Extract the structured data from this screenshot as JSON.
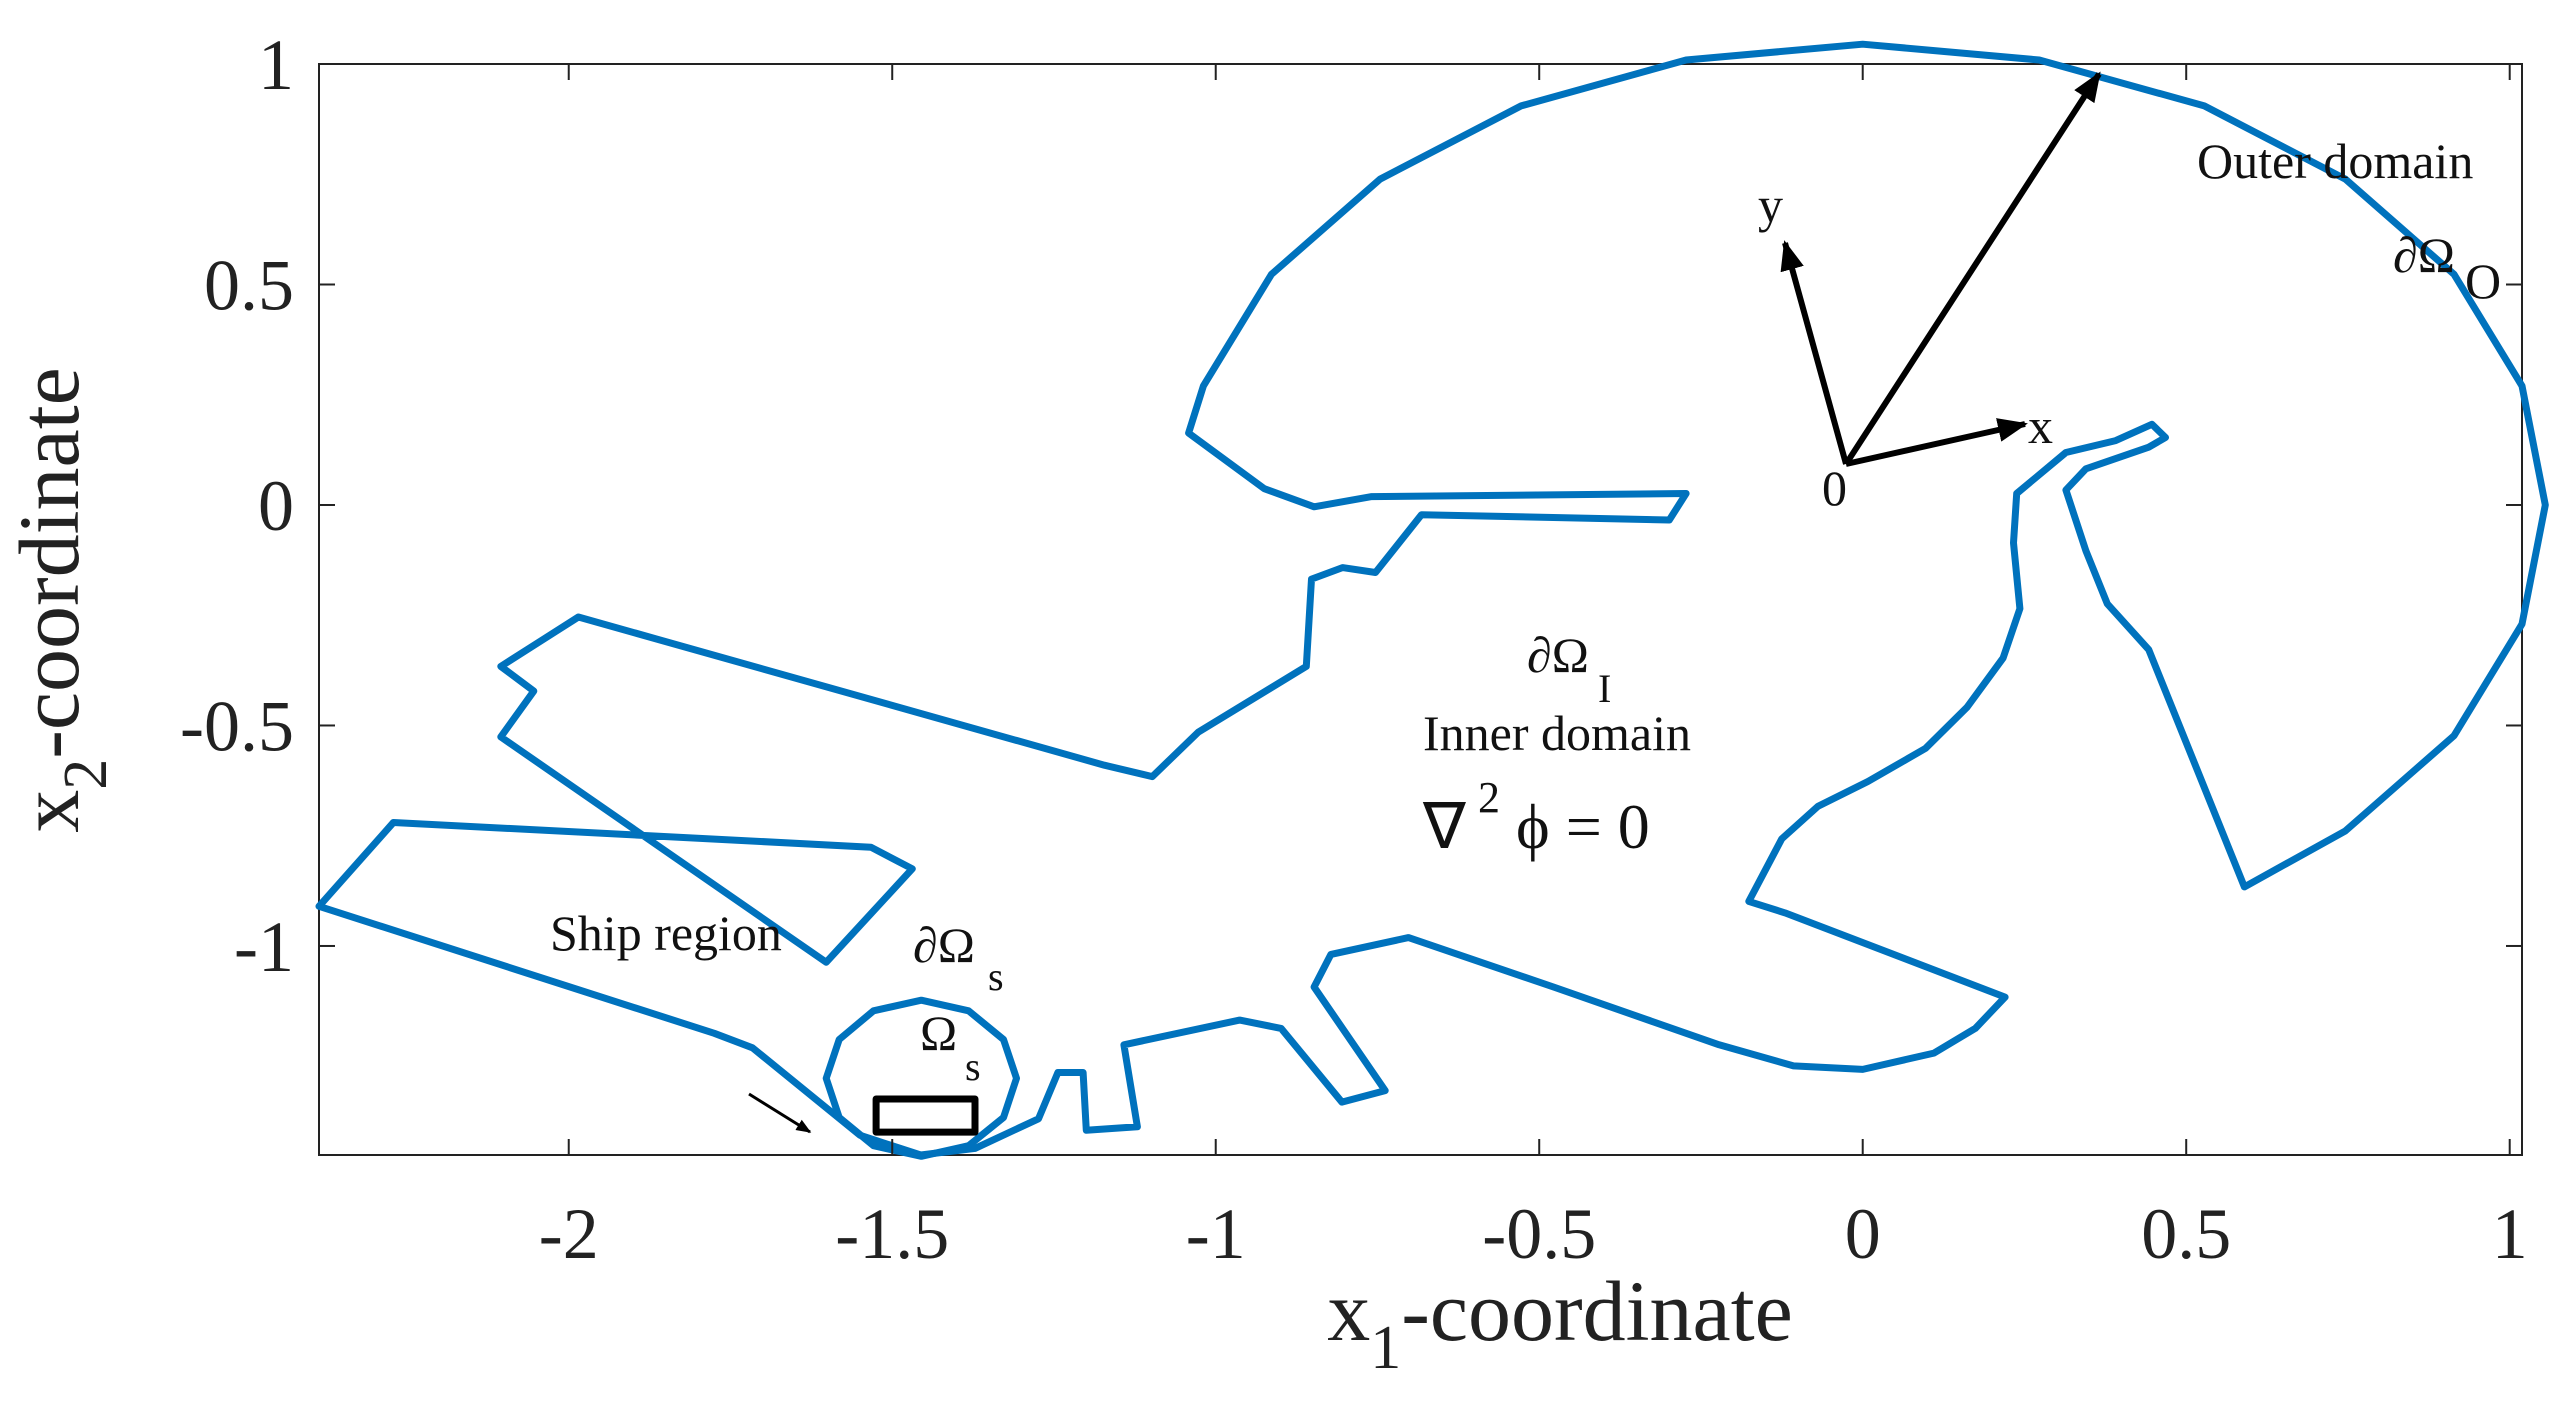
{
  "chart_data": {
    "type": "line",
    "xlim": [
      -2.386,
      1.019
    ],
    "ylim": [
      -1.474,
      1.0
    ],
    "xticks": [
      -2,
      -1.5,
      -1,
      -0.5,
      0,
      0.5,
      1
    ],
    "yticks": [
      -1,
      -0.5,
      0,
      0.5,
      1
    ],
    "xlabel": [
      "x",
      "1",
      "-coordinate"
    ],
    "ylabel": [
      "x",
      "2",
      "-coordinate"
    ],
    "annotations": [
      "Outer domain",
      "∂Ω",
      "O",
      "∂Ω",
      "I",
      "Inner domain",
      "∇",
      "2",
      "ϕ = 0",
      "Ship region",
      "∂Ω",
      "s",
      "Ω",
      "s",
      "x",
      "y",
      "0"
    ],
    "series": [
      {
        "color": "#0072bd",
        "x": [
          -1.042,
          -1.019,
          -0.914,
          -0.746,
          -0.528,
          -0.273,
          0,
          0.273,
          0.528,
          0.746,
          0.914,
          1.019,
          1.055,
          1.019,
          0.914,
          0.746,
          0.59,
          0.442,
          0.378,
          0.345,
          0.314,
          0.345,
          0.442,
          0.468,
          0.447,
          0.391,
          0.314,
          0.238,
          0.233,
          0.243,
          0.217,
          0.161,
          0.097,
          0.008,
          -0.069,
          -0.125,
          -0.176,
          -0.12,
          0.22,
          0.174,
          0.11,
          0,
          -0.107,
          -0.222,
          -0.478,
          -0.702,
          -0.822,
          -0.848,
          -0.738,
          -0.805,
          -0.899,
          -0.963,
          -1.142,
          -1.121,
          -1.2,
          -1.205,
          -1.244,
          -1.274,
          -1.372,
          -1.456,
          -1.55,
          -1.716,
          -1.775,
          -2.386,
          -2.271,
          -1.533,
          -1.469,
          -1.602,
          -2.105,
          -2.054,
          -2.105,
          -1.985,
          -1.172,
          -1.098,
          -1.027,
          -0.86,
          -0.852,
          -0.804,
          -0.753,
          -0.682,
          -0.299,
          -0.273,
          -0.759,
          -0.848,
          -0.925
        ],
        "values": [
          0.163,
          0.27,
          0.523,
          0.739,
          0.905,
          1.009,
          1.045,
          1.009,
          0.905,
          0.739,
          0.523,
          0.27,
          0,
          -0.27,
          -0.523,
          -0.739,
          -0.866,
          -0.328,
          -0.224,
          -0.104,
          0.034,
          0.082,
          0.131,
          0.153,
          0.183,
          0.146,
          0.119,
          0.026,
          -0.086,
          -0.235,
          -0.347,
          -0.459,
          -0.552,
          -0.627,
          -0.683,
          -0.757,
          -0.899,
          -0.925,
          -1.116,
          -1.187,
          -1.243,
          -1.28,
          -1.272,
          -1.224,
          -1.093,
          -0.981,
          -1.019,
          -1.093,
          -1.328,
          -1.354,
          -1.187,
          -1.168,
          -1.224,
          -1.41,
          -1.418,
          -1.287,
          -1.287,
          -1.392,
          -1.459,
          -1.474,
          -1.429,
          -1.231,
          -1.198,
          -0.91,
          -0.72,
          -0.776,
          -0.825,
          -1.037,
          -0.526,
          -0.422,
          -0.366,
          -0.254,
          -0.59,
          -0.616,
          -0.515,
          -0.366,
          -0.168,
          -0.142,
          -0.153,
          -0.022,
          -0.034,
          0.026,
          0.019,
          -0.004,
          0.037
        ]
      },
      {
        "color": "#0072bd",
        "x": [
          -1.308,
          -1.328,
          -1.382,
          -1.455,
          -1.529,
          -1.582,
          -1.602,
          -1.582,
          -1.529,
          -1.455,
          -1.382,
          -1.328
        ],
        "values": [
          -1.3,
          -1.212,
          -1.147,
          -1.123,
          -1.147,
          -1.212,
          -1.3,
          -1.389,
          -1.453,
          -1.477,
          -1.453,
          -1.389
        ]
      },
      {
        "color": "#000000",
        "x": [
          -1.525,
          -1.372,
          -1.372,
          -1.525
        ],
        "values": [
          -1.347,
          -1.347,
          -1.422,
          -1.422
        ]
      }
    ]
  }
}
